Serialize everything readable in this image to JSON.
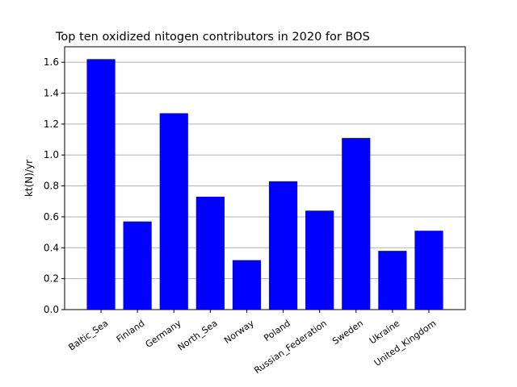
{
  "chart_data": {
    "type": "bar",
    "title": "Top ten oxidized nitogen contributors in 2020 for  BOS",
    "xlabel": "",
    "ylabel": "kt(N)/yr",
    "categories": [
      "Baltic_Sea",
      "Finland",
      "Germany",
      "North_Sea",
      "Norway",
      "Poland",
      "Russian_Federation",
      "Sweden",
      "Ukraine",
      "United_Kingdom"
    ],
    "values": [
      1.62,
      0.57,
      1.27,
      0.73,
      0.32,
      0.83,
      0.64,
      1.11,
      0.38,
      0.51
    ],
    "ylim": [
      0,
      1.7
    ],
    "yticks": [
      "0.0",
      "0.2",
      "0.4",
      "0.6",
      "0.8",
      "1.0",
      "1.2",
      "1.4",
      "1.6"
    ],
    "grid": "horizontal",
    "bar_color": "#0000ff",
    "grid_color": "#b0b0b0"
  }
}
